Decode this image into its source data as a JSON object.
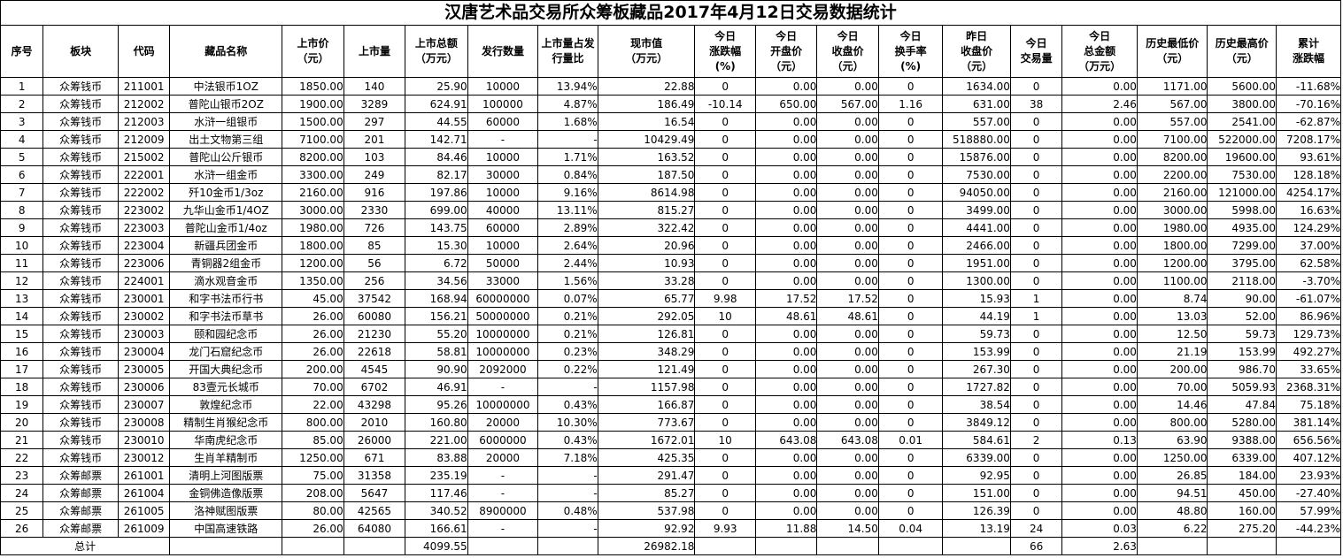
{
  "title": "汉唐艺术品交易所众筹板藏品2017年4月12日交易数据统计",
  "headers": [
    "序号",
    "板块",
    "代码",
    "藏品名称",
    "上市价\n（元）",
    "上市量",
    "上市总额\n（万元）",
    "发行数量",
    "上市量占发\n行量比",
    "现市值\n（万元）",
    "今日\n涨跌幅\n(%)",
    "今日\n开盘价\n（元）",
    "今日\n收盘价\n（元）",
    "今日\n换手率\n(%)",
    "昨日\n收盘价\n（元）",
    "今日\n交易量",
    "今日\n总金额\n（万元）",
    "历史最低价\n（元）",
    "历史最高价\n（元）",
    "累计\n涨跌幅"
  ],
  "rows": [
    [
      "1",
      "众筹钱币",
      "211001",
      "中法银币1OZ",
      "1850.00",
      "140",
      "25.90",
      "10000",
      "13.94%",
      "22.88",
      "0",
      "0.00",
      "0.00",
      "0",
      "1634.00",
      "0",
      "0.00",
      "1171.00",
      "5600.00",
      "-11.68%"
    ],
    [
      "2",
      "众筹钱币",
      "212002",
      "普陀山银币2OZ",
      "1900.00",
      "3289",
      "624.91",
      "100000",
      "4.87%",
      "186.49",
      "-10.14",
      "650.00",
      "567.00",
      "1.16",
      "631.00",
      "38",
      "2.46",
      "567.00",
      "3800.00",
      "-70.16%"
    ],
    [
      "3",
      "众筹钱币",
      "212003",
      "水浒一组银币",
      "1500.00",
      "297",
      "44.55",
      "60000",
      "1.68%",
      "16.54",
      "0",
      "0.00",
      "0.00",
      "0",
      "557.00",
      "0",
      "0.00",
      "557.00",
      "2541.00",
      "-62.87%"
    ],
    [
      "4",
      "众筹钱币",
      "212009",
      "出土文物第三组",
      "7100.00",
      "201",
      "142.71",
      "-",
      "-",
      "10429.49",
      "0",
      "0.00",
      "0.00",
      "0",
      "518880.00",
      "0",
      "0.00",
      "7100.00",
      "522000.00",
      "7208.17%"
    ],
    [
      "5",
      "众筹钱币",
      "215002",
      "普陀山公斤银币",
      "8200.00",
      "103",
      "84.46",
      "10000",
      "1.71%",
      "163.52",
      "0",
      "0.00",
      "0.00",
      "0",
      "15876.00",
      "0",
      "0.00",
      "8200.00",
      "19600.00",
      "93.61%"
    ],
    [
      "6",
      "众筹钱币",
      "222001",
      "水浒一组金币",
      "3300.00",
      "249",
      "82.17",
      "30000",
      "0.84%",
      "187.50",
      "0",
      "0.00",
      "0.00",
      "0",
      "7530.00",
      "0",
      "0.00",
      "2200.00",
      "7530.00",
      "128.18%"
    ],
    [
      "7",
      "众筹钱币",
      "222002",
      "歼10金币1/3oz",
      "2160.00",
      "916",
      "197.86",
      "10000",
      "9.16%",
      "8614.98",
      "0",
      "0.00",
      "0.00",
      "0",
      "94050.00",
      "0",
      "0.00",
      "2160.00",
      "121000.00",
      "4254.17%"
    ],
    [
      "8",
      "众筹钱币",
      "223002",
      "九华山金币1/4OZ",
      "3000.00",
      "2330",
      "699.00",
      "40000",
      "13.11%",
      "815.27",
      "0",
      "0.00",
      "0.00",
      "0",
      "3499.00",
      "0",
      "0.00",
      "3000.00",
      "5998.00",
      "16.63%"
    ],
    [
      "9",
      "众筹钱币",
      "223003",
      "普陀山金币1/4oz",
      "1980.00",
      "726",
      "143.75",
      "60000",
      "2.89%",
      "322.42",
      "0",
      "0.00",
      "0.00",
      "0",
      "4441.00",
      "0",
      "0.00",
      "1980.00",
      "4935.00",
      "124.29%"
    ],
    [
      "10",
      "众筹钱币",
      "223004",
      "新疆兵团金币",
      "1800.00",
      "85",
      "15.30",
      "10000",
      "2.64%",
      "20.96",
      "0",
      "0.00",
      "0.00",
      "0",
      "2466.00",
      "0",
      "0.00",
      "1800.00",
      "7299.00",
      "37.00%"
    ],
    [
      "11",
      "众筹钱币",
      "223006",
      "青铜器2组金币",
      "1200.00",
      "56",
      "6.72",
      "50000",
      "2.44%",
      "10.93",
      "0",
      "0.00",
      "0.00",
      "0",
      "1951.00",
      "0",
      "0.00",
      "1200.00",
      "3795.00",
      "62.58%"
    ],
    [
      "12",
      "众筹钱币",
      "224001",
      "滴水观音金币",
      "1350.00",
      "256",
      "34.56",
      "33000",
      "1.56%",
      "33.28",
      "0",
      "0.00",
      "0.00",
      "0",
      "1300.00",
      "0",
      "0.00",
      "1100.00",
      "2118.00",
      "-3.70%"
    ],
    [
      "13",
      "众筹钱币",
      "230001",
      "和字书法币行书",
      "45.00",
      "37542",
      "168.94",
      "60000000",
      "0.07%",
      "65.77",
      "9.98",
      "17.52",
      "17.52",
      "0",
      "15.93",
      "1",
      "0.00",
      "8.74",
      "90.00",
      "-61.07%"
    ],
    [
      "14",
      "众筹钱币",
      "230002",
      "和字书法币草书",
      "26.00",
      "60080",
      "156.21",
      "50000000",
      "0.21%",
      "292.05",
      "10",
      "48.61",
      "48.61",
      "0",
      "44.19",
      "1",
      "0.00",
      "13.03",
      "52.00",
      "86.96%"
    ],
    [
      "15",
      "众筹钱币",
      "230003",
      "颐和园纪念币",
      "26.00",
      "21230",
      "55.20",
      "10000000",
      "0.21%",
      "126.81",
      "0",
      "0.00",
      "0.00",
      "0",
      "59.73",
      "0",
      "0.00",
      "12.50",
      "59.73",
      "129.73%"
    ],
    [
      "16",
      "众筹钱币",
      "230004",
      "龙门石窟纪念币",
      "26.00",
      "22618",
      "58.81",
      "10000000",
      "0.23%",
      "348.29",
      "0",
      "0.00",
      "0.00",
      "0",
      "153.99",
      "0",
      "0.00",
      "21.19",
      "153.99",
      "492.27%"
    ],
    [
      "17",
      "众筹钱币",
      "230005",
      "开国大典纪念币",
      "200.00",
      "4545",
      "90.90",
      "2092000",
      "0.22%",
      "121.49",
      "0",
      "0.00",
      "0.00",
      "0",
      "267.30",
      "0",
      "0.00",
      "200.00",
      "986.70",
      "33.65%"
    ],
    [
      "18",
      "众筹钱币",
      "230006",
      "83壹元长城币",
      "70.00",
      "6702",
      "46.91",
      "-",
      "-",
      "1157.98",
      "0",
      "0.00",
      "0.00",
      "0",
      "1727.82",
      "0",
      "0.00",
      "70.00",
      "5059.93",
      "2368.31%"
    ],
    [
      "19",
      "众筹钱币",
      "230007",
      "敦煌纪念币",
      "22.00",
      "43298",
      "95.26",
      "10000000",
      "0.43%",
      "166.87",
      "0",
      "0.00",
      "0.00",
      "0",
      "38.54",
      "0",
      "0.00",
      "14.46",
      "47.84",
      "75.18%"
    ],
    [
      "20",
      "众筹钱币",
      "230008",
      "精制生肖猴纪念币",
      "800.00",
      "2010",
      "160.80",
      "20000",
      "10.30%",
      "773.67",
      "0",
      "0.00",
      "0.00",
      "0",
      "3849.12",
      "0",
      "0.00",
      "800.00",
      "5280.00",
      "381.14%"
    ],
    [
      "21",
      "众筹钱币",
      "230010",
      "华南虎纪念币",
      "85.00",
      "26000",
      "221.00",
      "6000000",
      "0.43%",
      "1672.01",
      "10",
      "643.08",
      "643.08",
      "0.01",
      "584.61",
      "2",
      "0.13",
      "63.90",
      "9388.00",
      "656.56%"
    ],
    [
      "22",
      "众筹钱币",
      "230012",
      "生肖羊精制币",
      "1250.00",
      "671",
      "83.88",
      "20000",
      "7.18%",
      "425.35",
      "0",
      "0.00",
      "0.00",
      "0",
      "6339.00",
      "0",
      "0.00",
      "1250.00",
      "6339.00",
      "407.12%"
    ],
    [
      "23",
      "众筹邮票",
      "261001",
      "清明上河图版票",
      "75.00",
      "31358",
      "235.19",
      "-",
      "-",
      "291.47",
      "0",
      "0.00",
      "0.00",
      "0",
      "92.95",
      "0",
      "0.00",
      "26.85",
      "184.00",
      "23.93%"
    ],
    [
      "24",
      "众筹邮票",
      "261004",
      "金铜佛造像版票",
      "208.00",
      "5647",
      "117.46",
      "-",
      "-",
      "85.27",
      "0",
      "0.00",
      "0.00",
      "0",
      "151.00",
      "0",
      "0.00",
      "94.51",
      "450.00",
      "-27.40%"
    ],
    [
      "25",
      "众筹邮票",
      "261005",
      "洛神赋图版票",
      "80.00",
      "42565",
      "340.52",
      "8900000",
      "0.48%",
      "537.98",
      "0",
      "0.00",
      "0.00",
      "0",
      "126.39",
      "0",
      "0.00",
      "48.80",
      "160.00",
      "57.99%"
    ],
    [
      "26",
      "众筹邮票",
      "261009",
      "中国高速铁路",
      "26.00",
      "64080",
      "166.61",
      "-",
      "-",
      "92.92",
      "9.93",
      "11.88",
      "14.50",
      "0.04",
      "13.19",
      "24",
      "0.03",
      "6.22",
      "275.20",
      "-44.23%"
    ]
  ],
  "total": {
    "label": "总计",
    "listing_total": "4099.55",
    "market_value": "26982.18",
    "volume": "66",
    "amount": "2.63"
  }
}
